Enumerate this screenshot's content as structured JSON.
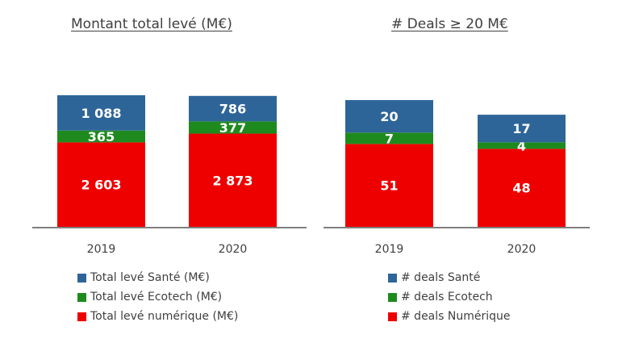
{
  "colors": {
    "sante": "#2E6599",
    "ecotech": "#1E8A1E",
    "numerique": "#EE0000",
    "axis": "#7F7F7F",
    "label": "#ffffff"
  },
  "chart_data": [
    {
      "type": "bar",
      "stacked": true,
      "title": "Montant total levé (M€)",
      "categories": [
        "2019",
        "2020"
      ],
      "series": [
        {
          "name": "Total levé numérique (M€)",
          "color": "#EE0000",
          "values": [
            2603,
            2873
          ],
          "labels": [
            "2 603",
            "2 873"
          ]
        },
        {
          "name": "Total levé Ecotech (M€)",
          "color": "#1E8A1E",
          "values": [
            365,
            377
          ],
          "labels": [
            "365",
            "377"
          ]
        },
        {
          "name": "Total levé Santé (M€)",
          "color": "#2E6599",
          "values": [
            1088,
            786
          ],
          "labels": [
            "1 088",
            "786"
          ]
        }
      ],
      "legend": [
        "Total levé Santé (M€)",
        "Total levé Ecotech (M€)",
        "Total levé numérique (M€)"
      ],
      "legend_placement": "bottom",
      "grid": false
    },
    {
      "type": "bar",
      "stacked": true,
      "title": "# Deals ≥ 20 M€",
      "categories": [
        "2019",
        "2020"
      ],
      "series": [
        {
          "name": "# deals Numérique",
          "color": "#EE0000",
          "values": [
            51,
            48
          ],
          "labels": [
            "51",
            "48"
          ]
        },
        {
          "name": "# deals Ecotech",
          "color": "#1E8A1E",
          "values": [
            7,
            4
          ],
          "labels": [
            "7",
            "4"
          ]
        },
        {
          "name": "# deals Santé",
          "color": "#2E6599",
          "values": [
            20,
            17
          ],
          "labels": [
            "20",
            "17"
          ]
        }
      ],
      "legend": [
        "# deals Santé",
        "# deals Ecotech",
        "# deals Numérique"
      ],
      "legend_placement": "bottom",
      "grid": false
    }
  ]
}
